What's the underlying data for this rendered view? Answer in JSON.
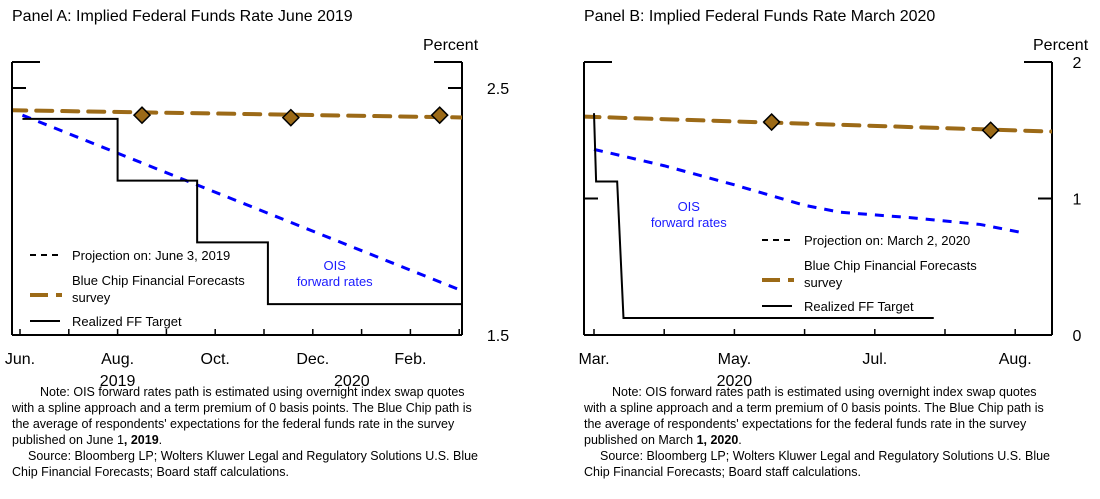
{
  "chart_data": [
    {
      "type": "line",
      "id": "panelA",
      "title": "Panel A: Implied Federal Funds Rate June 2019",
      "ylabel": "Percent",
      "ylim": [
        1.5,
        2.6
      ],
      "yticks": [
        {
          "value": 2.5,
          "label": "2.5"
        },
        {
          "value": 1.5,
          "label": "1.5"
        }
      ],
      "xlim": [
        0,
        9.3
      ],
      "xticks_minor": [
        0,
        1,
        2,
        3,
        4,
        5,
        6,
        7,
        8,
        9
      ],
      "xtick_labels": [
        {
          "x": 0,
          "label": "Jun."
        },
        {
          "x": 2,
          "label": "Aug."
        },
        {
          "x": 4,
          "label": "Oct."
        },
        {
          "x": 6,
          "label": "Dec."
        },
        {
          "x": 8,
          "label": "Feb."
        }
      ],
      "year_labels": [
        {
          "x": 2,
          "label": "2019"
        },
        {
          "x": 6.8,
          "label": "2020"
        }
      ],
      "series": [
        {
          "name": "Blue Chip Financial Forecasts survey",
          "style": "dash-brown",
          "x": [
            -0.2,
            9.3
          ],
          "y": [
            2.41,
            2.38
          ],
          "markers": {
            "x": [
              2.5,
              5.55,
              8.6
            ],
            "y": [
              2.39,
              2.38,
              2.39
            ]
          }
        },
        {
          "name": "OIS forward rates",
          "style": "dash-blue",
          "x": [
            0.05,
            9.3
          ],
          "y": [
            2.39,
            1.66
          ]
        },
        {
          "name": "Realized FF Target",
          "style": "solid-black",
          "x": [
            0.05,
            2.0,
            2.0,
            3.63,
            3.63,
            5.08,
            5.08,
            9.13
          ],
          "y": [
            2.375,
            2.375,
            2.125,
            2.125,
            1.875,
            1.875,
            1.625,
            1.625
          ]
        }
      ],
      "annotation": {
        "text_line1": "OIS",
        "text_line2": "forward rates",
        "x": 6.45,
        "y": 1.73
      },
      "legend": {
        "placement": "bottom-left",
        "items": [
          {
            "label": "Projection on: June 3, 2019",
            "style": "dash-black"
          },
          {
            "label_line1": "Blue Chip Financial Forecasts",
            "label_line2": "survey",
            "style": "dash-dot-brown"
          },
          {
            "label": "Realized FF Target",
            "style": "solid-black"
          }
        ]
      }
    },
    {
      "type": "line",
      "id": "panelB",
      "title": "Panel B: Implied Federal Funds Rate March 2020",
      "ylabel": "Percent",
      "ylim": [
        0,
        2
      ],
      "yticks": [
        {
          "value": 2,
          "label": "2"
        },
        {
          "value": 1,
          "label": "1"
        },
        {
          "value": 0,
          "label": "0"
        }
      ],
      "xlim": [
        -0.15,
        6.55
      ],
      "xticks_minor": [
        0,
        1,
        2,
        3,
        4,
        5,
        6
      ],
      "xtick_labels": [
        {
          "x": 0,
          "label": "Mar."
        },
        {
          "x": 2,
          "label": "May."
        },
        {
          "x": 4,
          "label": "Jul."
        },
        {
          "x": 6,
          "label": "Aug."
        }
      ],
      "year_labels": [
        {
          "x": 2,
          "label": "2020"
        }
      ],
      "series": [
        {
          "name": "Blue Chip Financial Forecasts survey",
          "style": "dash-brown",
          "x": [
            -0.15,
            6.55
          ],
          "y": [
            1.6,
            1.49
          ],
          "markers": {
            "x": [
              2.53,
              5.65
            ],
            "y": [
              1.56,
              1.5
            ]
          }
        },
        {
          "name": "OIS forward rates",
          "style": "dash-blue",
          "x": [
            0.0,
            1.0,
            2.0,
            3.0,
            3.5,
            4.5,
            5.5,
            6.1
          ],
          "y": [
            1.36,
            1.24,
            1.1,
            0.95,
            0.9,
            0.86,
            0.81,
            0.75
          ]
        },
        {
          "name": "Realized FF Target",
          "style": "solid-black",
          "x": [
            0.0,
            0.03,
            0.33,
            0.42,
            4.84
          ],
          "y": [
            1.625,
            1.125,
            1.125,
            0.125,
            0.125
          ]
        }
      ],
      "annotation": {
        "text_line1": "OIS",
        "text_line2": "forward rates",
        "x": 1.35,
        "y": 0.85
      },
      "legend": {
        "placement": "bottom-center",
        "items": [
          {
            "label": "Projection on: March 2, 2020",
            "style": "dash-black"
          },
          {
            "label_line1": "Blue Chip Financial Forecasts",
            "label_line2": "survey",
            "style": "dash-dot-brown"
          },
          {
            "label": "Realized FF Target",
            "style": "solid-black"
          }
        ]
      }
    }
  ],
  "colors": {
    "brown": "#9c6a17",
    "blue": "#0000ff",
    "black": "#000000",
    "annotation_blue": "#1a1aff"
  },
  "notes": {
    "panelA": {
      "note_prefix": "Note:  OIS forward rates path is estimated using overnight index swap quotes with a spline approach and a term premium of 0 basis points. The Blue Chip path is the average of respondents' expectations for the federal funds rate in the survey published on June 1",
      "note_bold": ", 2019",
      "note_suffix": ".",
      "source": "Source:  Bloomberg LP; Wolters Kluwer Legal and Regulatory Solutions U.S. Blue Chip Financial Forecasts; Board staff calculations."
    },
    "panelB": {
      "note_prefix": "Note:  OIS forward rates path is estimated using overnight index swap quotes with a spline approach and a term premium of 0 basis points. The Blue Chip path is the average of respondents' expectations for the federal funds rate in the survey published on March ",
      "note_bold": "1, 2020",
      "note_suffix": ".",
      "source": "Source:  Bloomberg LP; Wolters Kluwer Legal and Regulatory Solutions U.S. Blue Chip Financial Forecasts; Board staff calculations."
    }
  }
}
